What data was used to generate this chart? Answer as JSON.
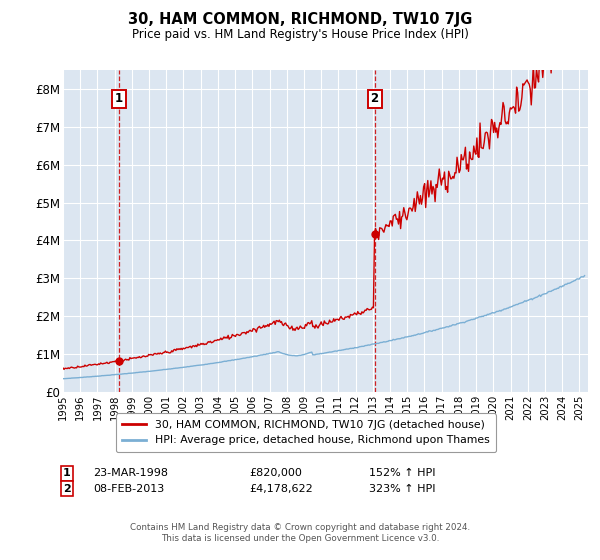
{
  "title": "30, HAM COMMON, RICHMOND, TW10 7JG",
  "subtitle": "Price paid vs. HM Land Registry's House Price Index (HPI)",
  "ylim": [
    0,
    8500000
  ],
  "yticks": [
    0,
    1000000,
    2000000,
    3000000,
    4000000,
    5000000,
    6000000,
    7000000,
    8000000
  ],
  "ytick_labels": [
    "£0",
    "£1M",
    "£2M",
    "£3M",
    "£4M",
    "£5M",
    "£6M",
    "£7M",
    "£8M"
  ],
  "background_color": "#dce6f1",
  "red_line_color": "#cc0000",
  "blue_line_color": "#7bafd4",
  "sale1_date": 1998.23,
  "sale1_price": 820000,
  "sale2_date": 2013.1,
  "sale2_price": 4178622,
  "legend_label_red": "30, HAM COMMON, RICHMOND, TW10 7JG (detached house)",
  "legend_label_blue": "HPI: Average price, detached house, Richmond upon Thames",
  "footer": "Contains HM Land Registry data © Crown copyright and database right 2024.\nThis data is licensed under the Open Government Licence v3.0.",
  "xmin": 1995.0,
  "xmax": 2025.5,
  "xticks": [
    1995,
    1996,
    1997,
    1998,
    1999,
    2000,
    2001,
    2002,
    2003,
    2004,
    2005,
    2006,
    2007,
    2008,
    2009,
    2010,
    2011,
    2012,
    2013,
    2014,
    2015,
    2016,
    2017,
    2018,
    2019,
    2020,
    2021,
    2022,
    2023,
    2024,
    2025
  ]
}
